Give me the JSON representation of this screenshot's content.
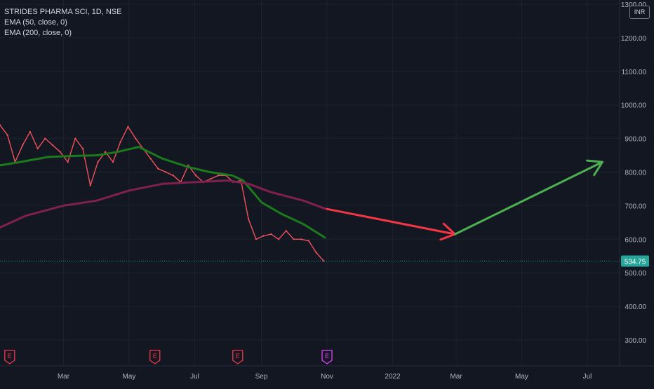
{
  "chart_data": {
    "type": "line",
    "title": "STRIDES PHARMA SCI, 1D, NSE",
    "currency": "INR",
    "indicators": [
      "EMA (50, close, 0)",
      "EMA (200, close, 0)"
    ],
    "last_price": "534.75",
    "y_ticks": [
      "1300.00",
      "1200.00",
      "1100.00",
      "1000.00",
      "900.00",
      "800.00",
      "700.00",
      "600.00",
      "500.00",
      "400.00",
      "300.00"
    ],
    "x_ticks": [
      "Mar",
      "May",
      "Jul",
      "Sep",
      "Nov",
      "2022",
      "Mar",
      "May",
      "Jul"
    ],
    "ylim": [
      240,
      1305
    ],
    "series": [
      {
        "name": "Price",
        "color": "#f0525a",
        "values": [
          {
            "x": "2021-01-01",
            "y": 940
          },
          {
            "x": "2021-01-08",
            "y": 910
          },
          {
            "x": "2021-01-15",
            "y": 830
          },
          {
            "x": "2021-01-22",
            "y": 880
          },
          {
            "x": "2021-01-29",
            "y": 920
          },
          {
            "x": "2021-02-05",
            "y": 870
          },
          {
            "x": "2021-02-12",
            "y": 900
          },
          {
            "x": "2021-02-19",
            "y": 880
          },
          {
            "x": "2021-02-26",
            "y": 860
          },
          {
            "x": "2021-03-05",
            "y": 830
          },
          {
            "x": "2021-03-12",
            "y": 900
          },
          {
            "x": "2021-03-19",
            "y": 870
          },
          {
            "x": "2021-03-26",
            "y": 760
          },
          {
            "x": "2021-04-02",
            "y": 830
          },
          {
            "x": "2021-04-09",
            "y": 860
          },
          {
            "x": "2021-04-16",
            "y": 830
          },
          {
            "x": "2021-04-23",
            "y": 890
          },
          {
            "x": "2021-04-30",
            "y": 935
          },
          {
            "x": "2021-05-07",
            "y": 900
          },
          {
            "x": "2021-05-14",
            "y": 870
          },
          {
            "x": "2021-05-21",
            "y": 840
          },
          {
            "x": "2021-05-28",
            "y": 810
          },
          {
            "x": "2021-06-04",
            "y": 800
          },
          {
            "x": "2021-06-11",
            "y": 790
          },
          {
            "x": "2021-06-18",
            "y": 770
          },
          {
            "x": "2021-06-25",
            "y": 820
          },
          {
            "x": "2021-07-02",
            "y": 790
          },
          {
            "x": "2021-07-09",
            "y": 770
          },
          {
            "x": "2021-07-16",
            "y": 780
          },
          {
            "x": "2021-07-23",
            "y": 790
          },
          {
            "x": "2021-07-30",
            "y": 790
          },
          {
            "x": "2021-08-06",
            "y": 770
          },
          {
            "x": "2021-08-13",
            "y": 775
          },
          {
            "x": "2021-08-20",
            "y": 660
          },
          {
            "x": "2021-08-27",
            "y": 600
          },
          {
            "x": "2021-09-03",
            "y": 610
          },
          {
            "x": "2021-09-10",
            "y": 615
          },
          {
            "x": "2021-09-17",
            "y": 600
          },
          {
            "x": "2021-09-24",
            "y": 625
          },
          {
            "x": "2021-10-01",
            "y": 600
          },
          {
            "x": "2021-10-08",
            "y": 600
          },
          {
            "x": "2021-10-15",
            "y": 595
          },
          {
            "x": "2021-10-22",
            "y": 560
          },
          {
            "x": "2021-10-29",
            "y": 535
          }
        ]
      },
      {
        "name": "EMA (50, close, 0)",
        "color": "#1b7a1b",
        "values": [
          {
            "x": "2021-01-01",
            "y": 820
          },
          {
            "x": "2021-01-20",
            "y": 830
          },
          {
            "x": "2021-02-15",
            "y": 845
          },
          {
            "x": "2021-03-10",
            "y": 848
          },
          {
            "x": "2021-04-01",
            "y": 850
          },
          {
            "x": "2021-04-20",
            "y": 860
          },
          {
            "x": "2021-05-10",
            "y": 875
          },
          {
            "x": "2021-06-01",
            "y": 840
          },
          {
            "x": "2021-06-25",
            "y": 815
          },
          {
            "x": "2021-07-15",
            "y": 800
          },
          {
            "x": "2021-08-05",
            "y": 790
          },
          {
            "x": "2021-08-15",
            "y": 775
          },
          {
            "x": "2021-09-01",
            "y": 710
          },
          {
            "x": "2021-09-20",
            "y": 675
          },
          {
            "x": "2021-10-10",
            "y": 645
          },
          {
            "x": "2021-10-30",
            "y": 605
          }
        ]
      },
      {
        "name": "EMA (200, close, 0)",
        "color": "#80204e",
        "values": [
          {
            "x": "2021-01-01",
            "y": 635
          },
          {
            "x": "2021-01-25",
            "y": 670
          },
          {
            "x": "2021-03-01",
            "y": 700
          },
          {
            "x": "2021-04-01",
            "y": 715
          },
          {
            "x": "2021-05-01",
            "y": 745
          },
          {
            "x": "2021-06-01",
            "y": 765
          },
          {
            "x": "2021-07-01",
            "y": 770
          },
          {
            "x": "2021-08-01",
            "y": 775
          },
          {
            "x": "2021-08-20",
            "y": 765
          },
          {
            "x": "2021-09-10",
            "y": 740
          },
          {
            "x": "2021-10-10",
            "y": 715
          },
          {
            "x": "2021-10-31",
            "y": 690
          }
        ]
      }
    ],
    "projection": [
      {
        "color": "#f23645",
        "from": {
          "x": "2021-11-01",
          "y": 690
        },
        "to": {
          "x": "2022-02-28",
          "y": 615
        }
      },
      {
        "color": "#4caf50",
        "from": {
          "x": "2022-02-28",
          "y": 615
        },
        "to": {
          "x": "2022-07-15",
          "y": 830
        }
      }
    ],
    "earnings_markers": [
      {
        "label": "E",
        "x": "2021-01-10",
        "color": "#f23645"
      },
      {
        "label": "E",
        "x": "2021-05-25",
        "color": "#f23645"
      },
      {
        "label": "E",
        "x": "2021-08-10",
        "color": "#f23645"
      },
      {
        "label": "E",
        "x": "2021-11-01",
        "color": "#e040fb"
      }
    ],
    "grid": true,
    "legend": "top-left"
  }
}
